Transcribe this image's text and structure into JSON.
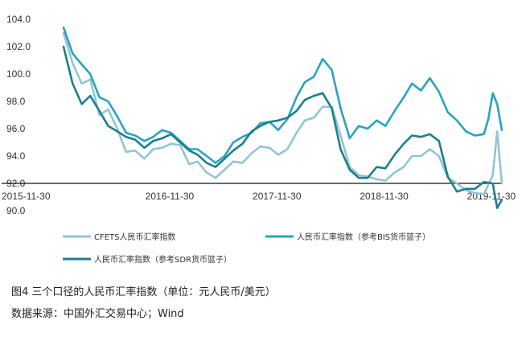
{
  "chart_data": {
    "type": "line",
    "title": "",
    "xlabel": "",
    "ylabel": "",
    "ylim": [
      90.0,
      104.0
    ],
    "yticks": [
      "90.0",
      "92.0",
      "94.0",
      "96.0",
      "98.0",
      "100.0",
      "102.0",
      "104.0"
    ],
    "x_range": [
      "2015-11-30",
      "2019-12-31"
    ],
    "xticks": [
      {
        "date": "2015-11-30",
        "label": "2015-11-30"
      },
      {
        "date": "2016-11-30",
        "label": "2016-11-30"
      },
      {
        "date": "2017-11-30",
        "label": "2017-11-30"
      },
      {
        "date": "2018-11-30",
        "label": "2018-11-30"
      },
      {
        "date": "2019-11-30",
        "label": "2019-11-30"
      }
    ],
    "reference_line": 92.0,
    "grid": false,
    "legend_position": "bottom",
    "series": [
      {
        "name": "CFETS人民币汇率指数",
        "color": "#93c4d4",
        "points": [
          [
            "2015-11-30",
            103.0
          ],
          [
            "2015-12-31",
            100.8
          ],
          [
            "2016-01-31",
            99.3
          ],
          [
            "2016-02-29",
            99.6
          ],
          [
            "2016-03-31",
            97.0
          ],
          [
            "2016-04-30",
            97.4
          ],
          [
            "2016-05-31",
            96.0
          ],
          [
            "2016-06-30",
            94.3
          ],
          [
            "2016-07-31",
            94.4
          ],
          [
            "2016-08-31",
            93.8
          ],
          [
            "2016-09-30",
            94.5
          ],
          [
            "2016-10-31",
            94.6
          ],
          [
            "2016-11-30",
            94.9
          ],
          [
            "2016-12-31",
            94.8
          ],
          [
            "2017-01-31",
            93.4
          ],
          [
            "2017-02-28",
            93.6
          ],
          [
            "2017-03-31",
            92.8
          ],
          [
            "2017-04-30",
            92.4
          ],
          [
            "2017-05-31",
            93.0
          ],
          [
            "2017-06-30",
            93.6
          ],
          [
            "2017-07-31",
            93.5
          ],
          [
            "2017-08-31",
            94.2
          ],
          [
            "2017-09-30",
            94.7
          ],
          [
            "2017-10-31",
            94.6
          ],
          [
            "2017-11-30",
            94.1
          ],
          [
            "2017-12-31",
            94.5
          ],
          [
            "2018-01-31",
            95.7
          ],
          [
            "2018-02-28",
            96.6
          ],
          [
            "2018-03-31",
            96.8
          ],
          [
            "2018-04-30",
            97.6
          ],
          [
            "2018-05-31",
            97.6
          ],
          [
            "2018-06-30",
            95.5
          ],
          [
            "2018-07-31",
            93.2
          ],
          [
            "2018-08-31",
            92.6
          ],
          [
            "2018-09-30",
            92.5
          ],
          [
            "2018-10-31",
            92.3
          ],
          [
            "2018-11-30",
            92.2
          ],
          [
            "2018-12-31",
            92.8
          ],
          [
            "2019-01-31",
            93.2
          ],
          [
            "2019-02-28",
            94.0
          ],
          [
            "2019-03-31",
            94.0
          ],
          [
            "2019-04-30",
            94.5
          ],
          [
            "2019-05-31",
            94.0
          ],
          [
            "2019-06-30",
            92.4
          ],
          [
            "2019-07-31",
            92.0
          ],
          [
            "2019-08-31",
            91.5
          ],
          [
            "2019-09-30",
            91.3
          ],
          [
            "2019-10-31",
            91.2
          ],
          [
            "2019-11-30",
            92.6
          ],
          [
            "2019-12-15",
            95.8
          ],
          [
            "2019-12-31",
            92.0
          ]
        ]
      },
      {
        "name": "人民币汇率指数（参考BIS货币篮子）",
        "color": "#2aa3bf",
        "points": [
          [
            "2015-11-30",
            103.4
          ],
          [
            "2015-12-31",
            101.5
          ],
          [
            "2016-01-31",
            100.7
          ],
          [
            "2016-02-29",
            100.0
          ],
          [
            "2016-03-31",
            98.3
          ],
          [
            "2016-04-30",
            98.0
          ],
          [
            "2016-05-31",
            96.9
          ],
          [
            "2016-06-30",
            95.7
          ],
          [
            "2016-07-31",
            95.5
          ],
          [
            "2016-08-31",
            95.1
          ],
          [
            "2016-09-30",
            95.4
          ],
          [
            "2016-10-31",
            95.9
          ],
          [
            "2016-11-30",
            95.7
          ],
          [
            "2016-12-31",
            95.1
          ],
          [
            "2017-01-31",
            94.5
          ],
          [
            "2017-02-28",
            94.5
          ],
          [
            "2017-03-31",
            94.0
          ],
          [
            "2017-04-30",
            93.5
          ],
          [
            "2017-05-31",
            94.0
          ],
          [
            "2017-06-30",
            95.0
          ],
          [
            "2017-07-31",
            95.4
          ],
          [
            "2017-08-31",
            95.7
          ],
          [
            "2017-09-30",
            96.4
          ],
          [
            "2017-10-31",
            96.5
          ],
          [
            "2017-11-30",
            95.9
          ],
          [
            "2017-12-31",
            96.7
          ],
          [
            "2018-01-31",
            98.3
          ],
          [
            "2018-02-28",
            99.4
          ],
          [
            "2018-03-31",
            99.8
          ],
          [
            "2018-04-30",
            101.1
          ],
          [
            "2018-05-31",
            100.3
          ],
          [
            "2018-06-30",
            97.5
          ],
          [
            "2018-07-31",
            95.3
          ],
          [
            "2018-08-31",
            96.2
          ],
          [
            "2018-09-30",
            96.0
          ],
          [
            "2018-10-31",
            96.6
          ],
          [
            "2018-11-30",
            96.2
          ],
          [
            "2018-12-31",
            97.3
          ],
          [
            "2019-01-31",
            98.3
          ],
          [
            "2019-02-28",
            99.3
          ],
          [
            "2019-03-31",
            98.8
          ],
          [
            "2019-04-30",
            99.7
          ],
          [
            "2019-05-31",
            98.7
          ],
          [
            "2019-06-30",
            97.2
          ],
          [
            "2019-07-31",
            96.6
          ],
          [
            "2019-08-31",
            95.8
          ],
          [
            "2019-09-30",
            95.5
          ],
          [
            "2019-10-31",
            95.6
          ],
          [
            "2019-11-15",
            96.7
          ],
          [
            "2019-11-30",
            98.6
          ],
          [
            "2019-12-15",
            97.8
          ],
          [
            "2019-12-31",
            95.9
          ]
        ]
      },
      {
        "name": "人民币汇率指数（参考SDR货币篮子）",
        "color": "#1a7f91",
        "points": [
          [
            "2015-11-30",
            102.0
          ],
          [
            "2015-12-31",
            99.3
          ],
          [
            "2016-01-31",
            97.8
          ],
          [
            "2016-02-29",
            98.4
          ],
          [
            "2016-03-31",
            97.3
          ],
          [
            "2016-04-30",
            96.2
          ],
          [
            "2016-05-31",
            95.8
          ],
          [
            "2016-06-30",
            95.4
          ],
          [
            "2016-07-31",
            95.2
          ],
          [
            "2016-08-31",
            94.6
          ],
          [
            "2016-09-30",
            95.1
          ],
          [
            "2016-10-31",
            95.3
          ],
          [
            "2016-11-30",
            95.6
          ],
          [
            "2016-12-31",
            95.0
          ],
          [
            "2017-01-31",
            94.4
          ],
          [
            "2017-02-28",
            94.1
          ],
          [
            "2017-03-31",
            93.5
          ],
          [
            "2017-04-30",
            93.2
          ],
          [
            "2017-05-31",
            93.8
          ],
          [
            "2017-06-30",
            94.4
          ],
          [
            "2017-07-31",
            94.9
          ],
          [
            "2017-08-31",
            95.8
          ],
          [
            "2017-09-30",
            96.2
          ],
          [
            "2017-10-31",
            96.5
          ],
          [
            "2017-11-30",
            96.6
          ],
          [
            "2017-12-31",
            96.8
          ],
          [
            "2018-01-31",
            97.3
          ],
          [
            "2018-02-28",
            98.1
          ],
          [
            "2018-03-31",
            98.4
          ],
          [
            "2018-04-30",
            98.6
          ],
          [
            "2018-05-31",
            97.5
          ],
          [
            "2018-06-30",
            94.5
          ],
          [
            "2018-07-31",
            93.0
          ],
          [
            "2018-08-31",
            92.4
          ],
          [
            "2018-09-30",
            92.4
          ],
          [
            "2018-10-31",
            93.2
          ],
          [
            "2018-11-30",
            93.1
          ],
          [
            "2018-12-31",
            94.1
          ],
          [
            "2019-01-31",
            94.9
          ],
          [
            "2019-02-28",
            95.5
          ],
          [
            "2019-03-31",
            95.4
          ],
          [
            "2019-04-30",
            95.6
          ],
          [
            "2019-05-31",
            95.1
          ],
          [
            "2019-06-30",
            92.5
          ],
          [
            "2019-07-31",
            91.4
          ],
          [
            "2019-08-31",
            91.6
          ],
          [
            "2019-09-30",
            91.6
          ],
          [
            "2019-10-31",
            92.1
          ],
          [
            "2019-11-30",
            92.0
          ],
          [
            "2019-12-15",
            90.2
          ],
          [
            "2019-12-31",
            90.8
          ]
        ]
      }
    ]
  },
  "legend": {
    "cfets": "CFETS人民币汇率指数",
    "bis": "人民币汇率指数（参考BIS货币篮子）",
    "sdr": "人民币汇率指数（参考SDR货币篮子）"
  },
  "caption": {
    "title": "图4 三个口径的人民币汇率指数（单位：元人民币/美元）",
    "source": "数据来源：中国外汇交易中心；Wind"
  }
}
